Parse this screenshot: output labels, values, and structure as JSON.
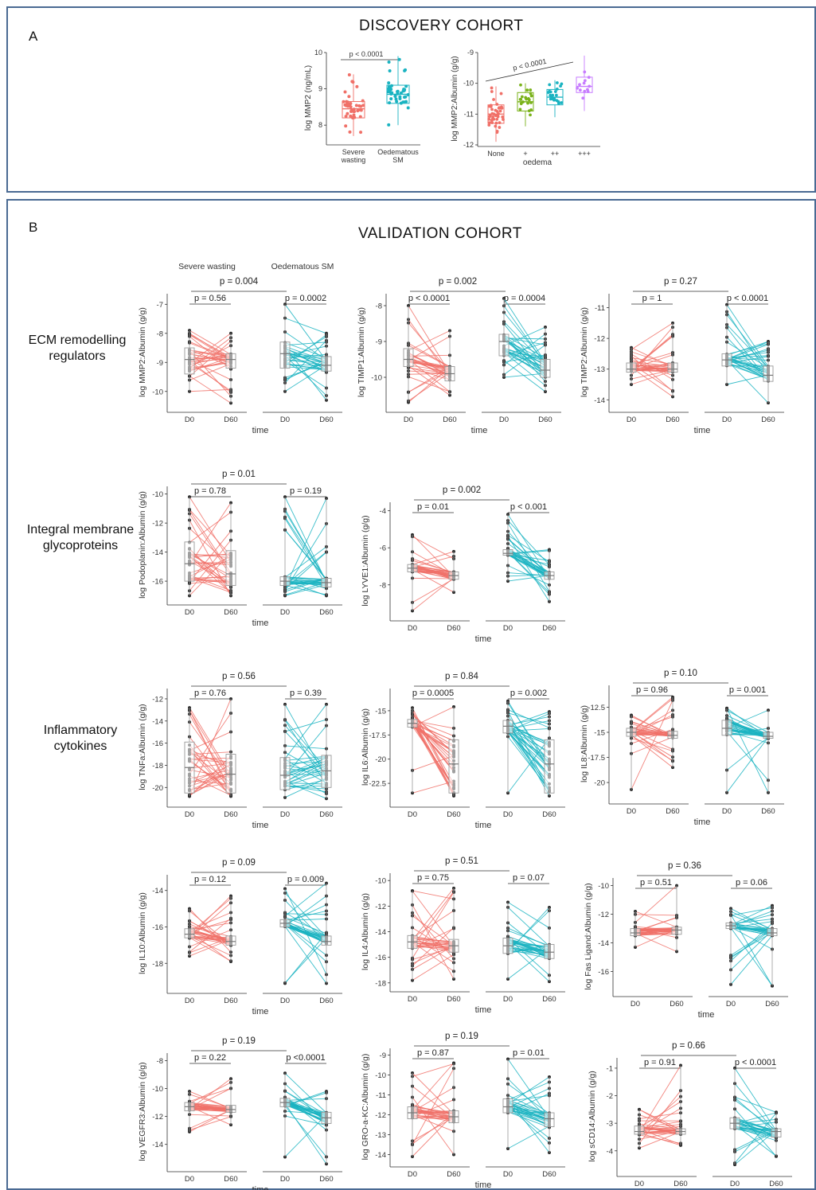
{
  "panel_a": {
    "label": "A",
    "heading": "DISCOVERY COHORT"
  },
  "panel_b": {
    "label": "B",
    "heading": "VALIDATION COHORT",
    "row_labels": [
      "ECM remodelling regulators",
      "Integral membrane glycoproteins",
      "Inflammatory cytokines"
    ]
  },
  "colors": {
    "severe": "#f07068",
    "oedematous": "#1ab3c1",
    "plus": "#7ab21a",
    "plusplus": "#1ab3c1",
    "plusplusplus": "#c77cff",
    "panel_border": "#4a6a93"
  },
  "chart_data": [
    {
      "id": "discovery-mmp2",
      "type": "box",
      "ylabel": "log MMP2 (ng/mL)",
      "ylim": [
        7.5,
        10
      ],
      "yticks": [
        8,
        9,
        10
      ],
      "categories": [
        "Severe wasting",
        "Oedematous SM"
      ],
      "p_label": "p < 0.0001",
      "boxes": [
        {
          "q1": 8.2,
          "median": 8.45,
          "q3": 8.65,
          "wlo": 7.7,
          "whi": 9.4
        },
        {
          "q1": 8.6,
          "median": 8.85,
          "q3": 9.1,
          "wlo": 8.0,
          "whi": 9.9
        }
      ]
    },
    {
      "id": "discovery-mmp2-albumin",
      "type": "box",
      "ylabel": "log MMP2:Albumin (g/g)",
      "ylim": [
        -12,
        -9
      ],
      "yticks": [
        -12,
        -11,
        -10,
        -9
      ],
      "xlabel": "oedema",
      "categories": [
        "None",
        "+",
        "++",
        "+++"
      ],
      "p_label": "p < 0.0001",
      "boxes": [
        {
          "q1": -11.3,
          "median": -11.0,
          "q3": -10.7,
          "wlo": -11.9,
          "whi": -10.1
        },
        {
          "q1": -10.9,
          "median": -10.6,
          "q3": -10.3,
          "wlo": -11.4,
          "whi": -10.0
        },
        {
          "q1": -10.7,
          "median": -10.45,
          "q3": -10.2,
          "wlo": -11.1,
          "whi": -9.9
        },
        {
          "q1": -10.3,
          "median": -10.1,
          "q3": -9.8,
          "wlo": -10.9,
          "whi": -9.1
        }
      ]
    },
    {
      "id": "mmp2",
      "type": "paired",
      "ylabel": "log MMP2:Albumin (g/g)",
      "ylim": [
        -10.5,
        -6.8
      ],
      "yticks": [
        -10,
        -9,
        -8,
        -7
      ],
      "group_labels": [
        "Severe wasting",
        "Oedematous SM"
      ],
      "x": [
        "D0",
        "D60"
      ],
      "xlabel": "time",
      "p_overall": "p = 0.004",
      "p_sw": "p = 0.56",
      "p_oed": "p = 0.0002",
      "sw": {
        "d0": [
          -9.4,
          -8.5,
          -8.9,
          -8.6
        ],
        "d60": [
          -9.2,
          -8.7,
          -8.9,
          -8.6
        ],
        "lo": [
          -10.0,
          -10.4
        ],
        "hi": [
          -7.9,
          -8.0
        ]
      },
      "oed": {
        "d0": [
          -9.2,
          -8.3,
          -8.7,
          -8.1
        ],
        "d60": [
          -9.3,
          -8.8,
          -9.1,
          -8.5
        ],
        "lo": [
          -10.0,
          -10.3
        ],
        "hi": [
          -7.0,
          -8.0
        ]
      }
    },
    {
      "id": "timp1",
      "type": "paired",
      "ylabel": "log TIMP1:Albumin (g/g)",
      "ylim": [
        -10.8,
        -7.8
      ],
      "yticks": [
        -10,
        -9,
        -8
      ],
      "group_labels": [
        "Severe wasting",
        "Oedematous SM"
      ],
      "x": [
        "D0",
        "D60"
      ],
      "xlabel": "time",
      "p_overall": "p = 0.002",
      "p_sw": "p < 0.0001",
      "p_oed": "p = 0.0004",
      "sw": {
        "d0": [
          -9.7,
          -9.2,
          -9.5,
          -8.9
        ],
        "d60": [
          -10.1,
          -9.7,
          -9.9,
          -9.5
        ],
        "lo": [
          -10.7,
          -10.5
        ],
        "hi": [
          -8.0,
          -8.7
        ]
      },
      "oed": {
        "d0": [
          -9.4,
          -8.8,
          -9.0,
          -8.5
        ],
        "d60": [
          -10.0,
          -9.5,
          -9.8,
          -9.3
        ],
        "lo": [
          -10.0,
          -10.4
        ],
        "hi": [
          -7.8,
          -8.6
        ]
      }
    },
    {
      "id": "timp2",
      "type": "paired",
      "ylabel": "log TIMP2:Albumin (g/g)",
      "ylim": [
        -14.2,
        -10.7
      ],
      "yticks": [
        -14,
        -13,
        -12,
        -11
      ],
      "group_labels": [
        "Severe wasting",
        "Oedematous SM"
      ],
      "x": [
        "D0",
        "D60"
      ],
      "xlabel": "time",
      "p_overall": "p = 0.27",
      "p_sw": "p = 1",
      "p_oed": "p < 0.0001",
      "sw": {
        "d0": [
          -13.1,
          -12.8,
          -13.0,
          -12.7
        ],
        "d60": [
          -13.1,
          -12.8,
          -13.0,
          -12.6
        ],
        "lo": [
          -13.5,
          -13.9
        ],
        "hi": [
          -12.3,
          -11.5
        ]
      },
      "oed": {
        "d0": [
          -12.9,
          -12.5,
          -12.7,
          -12.2
        ],
        "d60": [
          -13.4,
          -12.9,
          -13.2,
          -12.7
        ],
        "lo": [
          -13.5,
          -14.1
        ],
        "hi": [
          -10.9,
          -12.1
        ]
      }
    },
    {
      "id": "podoplanin",
      "type": "paired",
      "ylabel": "log Podoplanin:Albumin (g/g)",
      "ylim": [
        -17.2,
        -9.8
      ],
      "yticks": [
        -16,
        -14,
        -12,
        -10
      ],
      "group_labels": [
        "Severe wasting",
        "Oedematous SM"
      ],
      "x": [
        "D0",
        "D60"
      ],
      "xlabel": "time",
      "p_overall": "p = 0.01",
      "p_sw": "p = 0.78",
      "p_oed": "p = 0.19",
      "sw": {
        "d0": [
          -16.0,
          -13.3,
          -14.8,
          -11.6
        ],
        "d60": [
          -16.3,
          -13.9,
          -15.5,
          -11.7
        ],
        "lo": [
          -17.0,
          -17.0
        ],
        "hi": [
          -10.2,
          -10.6
        ]
      },
      "oed": {
        "d0": [
          -16.3,
          -15.7,
          -16.0,
          -14.7
        ],
        "d60": [
          -16.4,
          -15.8,
          -16.1,
          -11.7
        ],
        "lo": [
          -17.0,
          -17.0
        ],
        "hi": [
          -10.2,
          -10.3
        ]
      }
    },
    {
      "id": "lyve1",
      "type": "paired",
      "ylabel": "log LYVE1:Albumin (g/g)",
      "ylim": [
        -9.6,
        -3.8
      ],
      "yticks": [
        -8,
        -6,
        -4
      ],
      "group_labels": [
        "Severe wasting",
        "Oedematous SM"
      ],
      "x": [
        "D0",
        "D60"
      ],
      "xlabel": "time",
      "p_overall": "p = 0.002",
      "p_sw": "p = 0.01",
      "p_oed": "p < 0.001",
      "sw": {
        "d0": [
          -7.3,
          -6.9,
          -7.1,
          -6.5
        ],
        "d60": [
          -7.7,
          -7.3,
          -7.5,
          -7.0
        ],
        "lo": [
          -9.4,
          -8.4
        ],
        "hi": [
          -5.3,
          -6.2
        ]
      },
      "oed": {
        "d0": [
          -6.4,
          -6.1,
          -6.3,
          -5.9
        ],
        "d60": [
          -7.7,
          -7.3,
          -7.5,
          -7.0
        ],
        "lo": [
          -7.8,
          -8.9
        ],
        "hi": [
          -4.2,
          -6.1
        ]
      }
    },
    {
      "id": "tnfa",
      "type": "paired",
      "ylabel": "log TNFa:Albumin (g/g)",
      "ylim": [
        -21.2,
        -11.5
      ],
      "yticks": [
        -20,
        -18,
        -16,
        -14,
        -12
      ],
      "group_labels": [
        "Severe wasting",
        "Oedematous SM"
      ],
      "x": [
        "D0",
        "D60"
      ],
      "xlabel": "time",
      "p_overall": "p = 0.56",
      "p_sw": "p = 0.76",
      "p_oed": "p = 0.39",
      "sw": {
        "d0": [
          -20.5,
          -15.9,
          -18.2,
          -14.0
        ],
        "d60": [
          -20.5,
          -17.0,
          -18.8,
          -15.0
        ],
        "lo": [
          -20.8,
          -20.8
        ],
        "hi": [
          -12.8,
          -12.0
        ]
      },
      "oed": {
        "d0": [
          -20.2,
          -17.3,
          -18.9,
          -13.8
        ],
        "d60": [
          -20.0,
          -17.1,
          -18.5,
          -15.5
        ],
        "lo": [
          -20.9,
          -21.0
        ],
        "hi": [
          -12.5,
          -12.5
        ]
      }
    },
    {
      "id": "il6",
      "type": "paired",
      "ylabel": "log IL6:Albumin (g/g)",
      "ylim": [
        -24.3,
        -13.2
      ],
      "yticks": [
        -22.5,
        -20.0,
        -17.5,
        -15.0
      ],
      "group_labels": [
        "Severe wasting",
        "Oedematous SM"
      ],
      "x": [
        "D0",
        "D60"
      ],
      "xlabel": "time",
      "p_overall": "p = 0.84",
      "p_sw": "p = 0.0005",
      "p_oed": "p = 0.002",
      "sw": {
        "d0": [
          -16.7,
          -15.9,
          -16.3,
          -15.4
        ],
        "d60": [
          -23.5,
          -18.0,
          -20.5,
          -16.5
        ],
        "lo": [
          -23.5,
          -23.8
        ],
        "hi": [
          -14.7,
          -14.6
        ]
      },
      "oed": {
        "d0": [
          -17.3,
          -16.0,
          -16.6,
          -15.2
        ],
        "d60": [
          -23.5,
          -18.0,
          -20.5,
          -16.7
        ],
        "lo": [
          -23.5,
          -23.8
        ],
        "hi": [
          -14.0,
          -15.1
        ]
      }
    },
    {
      "id": "il8",
      "type": "paired",
      "ylabel": "log IL8:Albumin (g/g)",
      "ylim": [
        -21.5,
        -10.8
      ],
      "yticks": [
        -20.0,
        -17.5,
        -15.0,
        -12.5
      ],
      "group_labels": [
        "Severe wasting",
        "Oedematous SM"
      ],
      "x": [
        "D0",
        "D60"
      ],
      "xlabel": "time",
      "p_overall": "p = 0.10",
      "p_sw": "p = 0.96",
      "p_oed": "p = 0.001",
      "sw": {
        "d0": [
          -15.4,
          -14.6,
          -15.0,
          -14.2
        ],
        "d60": [
          -15.6,
          -14.9,
          -15.3,
          -14.0
        ],
        "lo": [
          -20.7,
          -18.5
        ],
        "hi": [
          -13.3,
          -11.5
        ]
      },
      "oed": {
        "d0": [
          -15.3,
          -13.8,
          -14.6,
          -13.2
        ],
        "d60": [
          -15.6,
          -15.0,
          -15.4,
          -14.7
        ],
        "lo": [
          -21.0,
          -21.0
        ],
        "hi": [
          -12.6,
          -12.8
        ]
      }
    },
    {
      "id": "il10",
      "type": "paired",
      "ylabel": "log IL10:Albumin (g/g)",
      "ylim": [
        -19.3,
        -13.4
      ],
      "yticks": [
        -18,
        -16,
        -14
      ],
      "group_labels": [
        "Severe wasting",
        "Oedematous SM"
      ],
      "x": [
        "D0",
        "D60"
      ],
      "xlabel": "time",
      "p_overall": "p = 0.09",
      "p_sw": "p = 0.12",
      "p_oed": "p = 0.009",
      "sw": {
        "d0": [
          -16.6,
          -16.1,
          -16.4,
          -15.7
        ],
        "d60": [
          -17.0,
          -16.5,
          -16.8,
          -16.1
        ],
        "lo": [
          -17.6,
          -17.9
        ],
        "hi": [
          -15.0,
          -14.3
        ]
      },
      "oed": {
        "d0": [
          -16.0,
          -15.6,
          -15.8,
          -15.1
        ],
        "d60": [
          -17.0,
          -16.5,
          -16.8,
          -16.0
        ],
        "lo": [
          -19.1,
          -19.1
        ],
        "hi": [
          -13.9,
          -13.6
        ]
      }
    },
    {
      "id": "il4",
      "type": "paired",
      "ylabel": "log IL4:Albumin (g/g)",
      "ylim": [
        -18.2,
        -9.8
      ],
      "yticks": [
        -18,
        -16,
        -14,
        -12,
        -10
      ],
      "group_labels": [
        "Severe wasting",
        "Oedematous SM"
      ],
      "x": [
        "D0",
        "D60"
      ],
      "xlabel": "time",
      "p_overall": "p = 0.51",
      "p_sw": "p = 0.75",
      "p_oed": "p = 0.07",
      "sw": {
        "d0": [
          -15.3,
          -14.3,
          -14.8,
          -13.4
        ],
        "d60": [
          -15.6,
          -14.6,
          -15.1,
          -13.4
        ],
        "lo": [
          -17.8,
          -17.7
        ],
        "hi": [
          -10.8,
          -10.6
        ]
      },
      "oed": {
        "d0": [
          -15.7,
          -14.5,
          -15.1,
          -13.4
        ],
        "d60": [
          -16.1,
          -15.0,
          -15.6,
          -13.7
        ],
        "lo": [
          -17.7,
          -17.9
        ],
        "hi": [
          -11.7,
          -12.1
        ]
      }
    },
    {
      "id": "fasl",
      "type": "paired",
      "ylabel": "log Fas Ligand:Albumin (g/g)",
      "ylim": [
        -17.3,
        -9.8
      ],
      "yticks": [
        -16,
        -14,
        -12,
        -10
      ],
      "group_labels": [
        "Severe wasting",
        "Oedematous SM"
      ],
      "x": [
        "D0",
        "D60"
      ],
      "xlabel": "time",
      "p_overall": "p = 0.36",
      "p_sw": "p = 0.51",
      "p_oed": "p = 0.06",
      "sw": {
        "d0": [
          -13.5,
          -13.0,
          -13.3,
          -12.6
        ],
        "d60": [
          -13.4,
          -12.9,
          -13.1,
          -12.5
        ],
        "lo": [
          -14.3,
          -14.6
        ],
        "hi": [
          -11.8,
          -10.0
        ]
      },
      "oed": {
        "d0": [
          -13.0,
          -12.6,
          -12.8,
          -12.3
        ],
        "d60": [
          -13.5,
          -13.0,
          -13.3,
          -12.8
        ],
        "lo": [
          -16.9,
          -17.0
        ],
        "hi": [
          -11.6,
          -11.4
        ]
      }
    },
    {
      "id": "vegfr3",
      "type": "paired",
      "ylabel": "log VEGFR3:Albumin (g/g)",
      "ylim": [
        -15.5,
        -7.8
      ],
      "yticks": [
        -14,
        -12,
        -10,
        -8
      ],
      "group_labels": [
        "Severe wasting",
        "Oedematous SM"
      ],
      "x": [
        "D0",
        "D60"
      ],
      "xlabel": "time",
      "p_overall": "p = 0.19",
      "p_sw": "p = 0.22",
      "p_oed": "p <0.0001",
      "sw": {
        "d0": [
          -11.6,
          -11.0,
          -11.3,
          -10.8
        ],
        "d60": [
          -11.7,
          -11.2,
          -11.5,
          -10.9
        ],
        "lo": [
          -13.1,
          -12.6
        ],
        "hi": [
          -10.2,
          -9.3
        ]
      },
      "oed": {
        "d0": [
          -11.3,
          -10.7,
          -11.0,
          -10.4
        ],
        "d60": [
          -12.5,
          -11.7,
          -12.1,
          -11.3
        ],
        "lo": [
          -14.9,
          -15.4
        ],
        "hi": [
          -8.9,
          -10.2
        ]
      }
    },
    {
      "id": "gro",
      "type": "paired",
      "ylabel": "log GRO-a-KC:Albumin (g/g)",
      "ylim": [
        -14.3,
        -8.9
      ],
      "yticks": [
        -14,
        -13,
        -12,
        -11,
        -10,
        -9
      ],
      "group_labels": [
        "Severe wasting",
        "Oedematous SM"
      ],
      "x": [
        "D0",
        "D60"
      ],
      "xlabel": "time",
      "p_overall": "p = 0.19",
      "p_sw": "p = 0.87",
      "p_oed": "p = 0.01",
      "sw": {
        "d0": [
          -12.2,
          -11.6,
          -11.9,
          -11.1
        ],
        "d60": [
          -12.4,
          -11.8,
          -12.1,
          -11.4
        ],
        "lo": [
          -14.1,
          -14.0
        ],
        "hi": [
          -9.9,
          -9.4
        ]
      },
      "oed": {
        "d0": [
          -11.9,
          -11.2,
          -11.6,
          -10.8
        ],
        "d60": [
          -12.6,
          -11.9,
          -12.2,
          -11.6
        ],
        "lo": [
          -13.7,
          -13.9
        ],
        "hi": [
          -9.2,
          -10.1
        ]
      }
    },
    {
      "id": "scd14",
      "type": "paired",
      "ylabel": "log sCD14:Albumin (g/g)",
      "ylim": [
        -4.7,
        -0.8
      ],
      "yticks": [
        -4,
        -3,
        -2,
        -1
      ],
      "group_labels": [
        "Severe wasting",
        "Oedematous SM"
      ],
      "x": [
        "D0",
        "D60"
      ],
      "xlabel": "time",
      "p_overall": "p = 0.66",
      "p_sw": "p = 0.91",
      "p_oed": "p < 0.0001",
      "sw": {
        "d0": [
          -3.4,
          -3.1,
          -3.3,
          -2.8
        ],
        "d60": [
          -3.4,
          -3.2,
          -3.3,
          -3.0
        ],
        "lo": [
          -3.9,
          -3.8
        ],
        "hi": [
          -2.5,
          -0.9
        ]
      },
      "oed": {
        "d0": [
          -3.2,
          -2.8,
          -3.0,
          -2.4
        ],
        "d60": [
          -3.5,
          -3.2,
          -3.3,
          -3.1
        ],
        "lo": [
          -4.5,
          -4.2
        ],
        "hi": [
          -1.0,
          -2.6
        ]
      }
    }
  ]
}
